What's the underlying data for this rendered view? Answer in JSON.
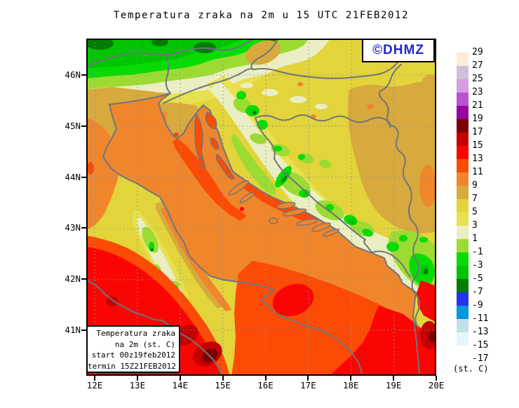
{
  "title": "Temperatura zraka na 2m u 15 UTC 21FEB2012",
  "watermark": "©DHMZ",
  "legend_box": {
    "lines": [
      "Temperatura zraka",
      "na 2m (st. C)",
      "start 00z19feb2012",
      "termin 15Z21FEB2012"
    ]
  },
  "axes": {
    "lat_labels": [
      "46N",
      "45N",
      "44N",
      "43N",
      "42N",
      "41N"
    ],
    "lon_labels": [
      "12E",
      "13E",
      "14E",
      "15E",
      "16E",
      "17E",
      "18E",
      "19E",
      "20E"
    ]
  },
  "colorbar": {
    "unit": "(st. C)",
    "labels": [
      "29",
      "27",
      "25",
      "23",
      "21",
      "19",
      "17",
      "15",
      "13",
      "11",
      "9",
      "7",
      "5",
      "3",
      "1",
      "-1",
      "-3",
      "-5",
      "-7",
      "-9",
      "-11",
      "-13",
      "-15",
      "-17"
    ],
    "cell_colors": [
      "#fcecd4",
      "#cdc1da",
      "#d69ce4",
      "#bb52d0",
      "#95079e",
      "#7d0001",
      "#c30101",
      "#fb0502",
      "#fb4b05",
      "#f0862c",
      "#d8a93c",
      "#e2d43a",
      "#e7e14f",
      "#eaeec2",
      "#9cdc32",
      "#06dc04",
      "#01c501",
      "#027c02",
      "#2433ec",
      "#0397dc",
      "#c0e0ea",
      "#e4f7f9",
      "#ffffff"
    ]
  },
  "colors": {
    "background": "#ffffff",
    "border_gray": "#6f757d",
    "grid_blue": "#8593ad",
    "watermark_blue": "#2228c8",
    "map_base_yellow": "#e2d43a",
    "sea_orange": "#f0862c"
  }
}
